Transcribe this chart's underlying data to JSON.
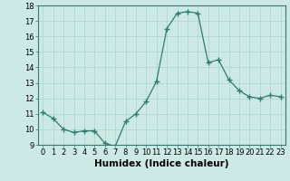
{
  "x": [
    0,
    1,
    2,
    3,
    4,
    5,
    6,
    7,
    8,
    9,
    10,
    11,
    12,
    13,
    14,
    15,
    16,
    17,
    18,
    19,
    20,
    21,
    22,
    23
  ],
  "y": [
    11.1,
    10.7,
    10.0,
    9.8,
    9.9,
    9.9,
    9.1,
    8.9,
    10.5,
    11.0,
    11.8,
    13.1,
    16.5,
    17.5,
    17.6,
    17.5,
    14.3,
    14.5,
    13.2,
    12.5,
    12.1,
    12.0,
    12.2,
    12.1
  ],
  "line_color": "#2e7d6e",
  "marker": "+",
  "marker_size": 4.0,
  "bg_color": "#cce9e5",
  "grid_color": "#b0d8d4",
  "xlabel": "Humidex (Indice chaleur)",
  "xlabel_fontsize": 7.5,
  "tick_fontsize": 6.0,
  "ylim": [
    9,
    18
  ],
  "yticks": [
    9,
    10,
    11,
    12,
    13,
    14,
    15,
    16,
    17,
    18
  ],
  "xlim": [
    -0.5,
    23.5
  ],
  "xticks": [
    0,
    1,
    2,
    3,
    4,
    5,
    6,
    7,
    8,
    9,
    10,
    11,
    12,
    13,
    14,
    15,
    16,
    17,
    18,
    19,
    20,
    21,
    22,
    23
  ]
}
